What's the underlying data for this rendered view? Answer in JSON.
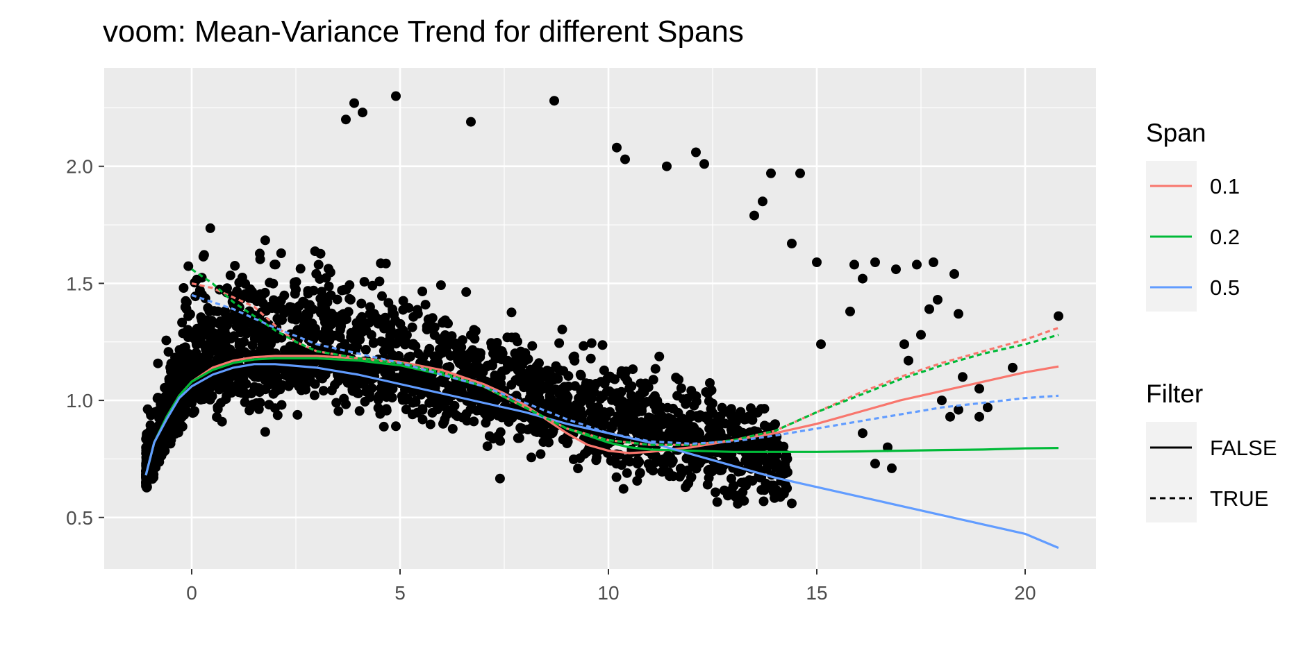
{
  "chart_data": {
    "type": "scatter",
    "title": "voom: Mean-Variance Trend for different Spans",
    "xlabel": "",
    "ylabel": "",
    "xlim": [
      -2.1,
      21.7
    ],
    "ylim": [
      0.28,
      2.42
    ],
    "x_ticks": [
      0,
      5,
      10,
      15,
      20
    ],
    "x_tick_labels": [
      "0",
      "5",
      "10",
      "15",
      "20"
    ],
    "y_ticks": [
      0.5,
      1.0,
      1.5,
      2.0
    ],
    "y_tick_labels": [
      "0.5",
      "1.0",
      "1.5",
      "2.0"
    ],
    "grid": true,
    "background": "#ebebeb",
    "points_color": "#000000",
    "legends": [
      {
        "title": "Span",
        "placement": "right",
        "entries": [
          {
            "label": "0.1",
            "color": "#f8766d"
          },
          {
            "label": "0.2",
            "color": "#00ba38"
          },
          {
            "label": "0.5",
            "color": "#619cff"
          }
        ]
      },
      {
        "title": "Filter",
        "placement": "right",
        "entries": [
          {
            "label": "FALSE",
            "linetype": "solid"
          },
          {
            "label": "TRUE",
            "linetype": "dashed"
          }
        ]
      }
    ],
    "scatter_outliers": [
      [
        4.9,
        2.3
      ],
      [
        3.9,
        2.27
      ],
      [
        4.1,
        2.23
      ],
      [
        8.7,
        2.28
      ],
      [
        3.7,
        2.2
      ],
      [
        6.7,
        2.19
      ],
      [
        10.2,
        2.08
      ],
      [
        12.1,
        2.06
      ],
      [
        10.4,
        2.03
      ],
      [
        12.3,
        2.01
      ],
      [
        11.4,
        2.0
      ],
      [
        13.9,
        1.97
      ],
      [
        14.6,
        1.97
      ],
      [
        13.7,
        1.85
      ],
      [
        13.5,
        1.79
      ],
      [
        14.4,
        1.67
      ],
      [
        15.0,
        1.59
      ],
      [
        15.9,
        1.58
      ],
      [
        16.4,
        1.59
      ],
      [
        16.9,
        1.56
      ],
      [
        17.4,
        1.58
      ],
      [
        17.8,
        1.59
      ],
      [
        18.3,
        1.54
      ],
      [
        16.1,
        1.52
      ],
      [
        17.7,
        1.39
      ],
      [
        17.9,
        1.43
      ],
      [
        18.4,
        1.37
      ],
      [
        17.5,
        1.28
      ],
      [
        17.1,
        1.24
      ],
      [
        17.2,
        1.17
      ],
      [
        18.5,
        1.1
      ],
      [
        18.9,
        1.05
      ],
      [
        18.0,
        1.0
      ],
      [
        18.4,
        0.96
      ],
      [
        18.2,
        0.93
      ],
      [
        18.9,
        0.93
      ],
      [
        19.1,
        0.97
      ],
      [
        19.7,
        1.14
      ],
      [
        20.8,
        1.36
      ],
      [
        16.1,
        0.86
      ],
      [
        16.4,
        0.73
      ],
      [
        16.8,
        0.71
      ],
      [
        16.7,
        0.8
      ],
      [
        15.8,
        1.38
      ],
      [
        14.4,
        0.56
      ],
      [
        15.1,
        1.24
      ]
    ],
    "series": [
      {
        "name": "0.1",
        "filter": "FALSE",
        "x": [
          -1.1,
          -0.9,
          -0.6,
          -0.3,
          0.0,
          0.5,
          1.0,
          1.5,
          2.0,
          2.5,
          3.0,
          4.0,
          5.0,
          6.0,
          7.0,
          7.5,
          8.0,
          8.5,
          9.0,
          9.5,
          10.0,
          10.5,
          11.0,
          11.5,
          12.0,
          13.0,
          14.0,
          15.0,
          16.0,
          17.0,
          18.0,
          19.0,
          20.0,
          20.8
        ],
        "y": [
          0.68,
          0.82,
          0.93,
          1.02,
          1.08,
          1.14,
          1.17,
          1.185,
          1.19,
          1.19,
          1.19,
          1.18,
          1.165,
          1.13,
          1.07,
          1.03,
          0.98,
          0.92,
          0.86,
          0.81,
          0.785,
          0.775,
          0.78,
          0.79,
          0.8,
          0.83,
          0.86,
          0.9,
          0.95,
          1.0,
          1.04,
          1.08,
          1.12,
          1.145
        ]
      },
      {
        "name": "0.2",
        "filter": "FALSE",
        "x": [
          -1.1,
          -0.9,
          -0.6,
          -0.3,
          0.0,
          0.5,
          1.0,
          1.5,
          2.0,
          3.0,
          4.0,
          5.0,
          6.0,
          7.0,
          8.0,
          9.0,
          10.0,
          10.5,
          11.0,
          12.0,
          13.0,
          14.0,
          15.0,
          16.0,
          17.0,
          18.0,
          19.0,
          20.0,
          20.8
        ],
        "y": [
          0.68,
          0.82,
          0.93,
          1.02,
          1.08,
          1.13,
          1.16,
          1.175,
          1.18,
          1.18,
          1.17,
          1.15,
          1.11,
          1.06,
          0.97,
          0.88,
          0.82,
          0.8,
          0.79,
          0.785,
          0.78,
          0.78,
          0.78,
          0.782,
          0.785,
          0.788,
          0.79,
          0.795,
          0.797
        ]
      },
      {
        "name": "0.5",
        "filter": "FALSE",
        "x": [
          -1.1,
          -0.9,
          -0.6,
          -0.3,
          0.0,
          0.5,
          1.0,
          1.5,
          2.0,
          3.0,
          4.0,
          5.0,
          6.0,
          7.0,
          8.0,
          9.0,
          10.0,
          11.0,
          12.0,
          13.0,
          14.0,
          15.0,
          16.0,
          17.0,
          18.0,
          19.0,
          20.0,
          20.8
        ],
        "y": [
          0.68,
          0.82,
          0.92,
          1.01,
          1.06,
          1.11,
          1.14,
          1.155,
          1.155,
          1.14,
          1.11,
          1.07,
          1.03,
          0.99,
          0.95,
          0.9,
          0.86,
          0.82,
          0.77,
          0.72,
          0.67,
          0.63,
          0.59,
          0.55,
          0.51,
          0.47,
          0.43,
          0.37
        ]
      },
      {
        "name": "0.1",
        "filter": "TRUE",
        "x": [
          0.0,
          0.5,
          1.0,
          1.5,
          2.0,
          2.5,
          3.0,
          4.0,
          5.0,
          6.0,
          7.0,
          8.0,
          9.0,
          10.0,
          11.0,
          12.0,
          13.0,
          14.0,
          15.0,
          16.0,
          17.0,
          18.0,
          19.0,
          20.0,
          20.8
        ],
        "y": [
          1.5,
          1.48,
          1.44,
          1.4,
          1.32,
          1.25,
          1.21,
          1.18,
          1.16,
          1.12,
          1.06,
          0.97,
          0.88,
          0.83,
          0.81,
          0.81,
          0.83,
          0.87,
          0.95,
          1.03,
          1.1,
          1.16,
          1.21,
          1.26,
          1.31
        ]
      },
      {
        "name": "0.2",
        "filter": "TRUE",
        "x": [
          0.0,
          0.5,
          1.0,
          1.5,
          2.0,
          2.5,
          3.0,
          4.0,
          5.0,
          6.0,
          7.0,
          8.0,
          9.0,
          10.0,
          11.0,
          12.0,
          13.0,
          14.0,
          15.0,
          16.0,
          17.0,
          18.0,
          19.0,
          20.0,
          20.8
        ],
        "y": [
          1.56,
          1.5,
          1.42,
          1.36,
          1.3,
          1.25,
          1.21,
          1.18,
          1.16,
          1.12,
          1.06,
          0.97,
          0.88,
          0.83,
          0.81,
          0.81,
          0.83,
          0.87,
          0.95,
          1.02,
          1.09,
          1.15,
          1.2,
          1.24,
          1.28
        ]
      },
      {
        "name": "0.5",
        "filter": "TRUE",
        "x": [
          0.0,
          1.0,
          2.0,
          3.0,
          4.0,
          5.0,
          6.0,
          7.0,
          8.0,
          9.0,
          10.0,
          11.0,
          12.0,
          13.0,
          14.0,
          15.0,
          16.0,
          17.0,
          18.0,
          19.0,
          20.0,
          20.8
        ],
        "y": [
          1.45,
          1.39,
          1.31,
          1.24,
          1.2,
          1.16,
          1.11,
          1.06,
          0.99,
          0.92,
          0.86,
          0.825,
          0.815,
          0.825,
          0.85,
          0.88,
          0.91,
          0.94,
          0.97,
          0.99,
          1.01,
          1.02
        ]
      }
    ]
  }
}
